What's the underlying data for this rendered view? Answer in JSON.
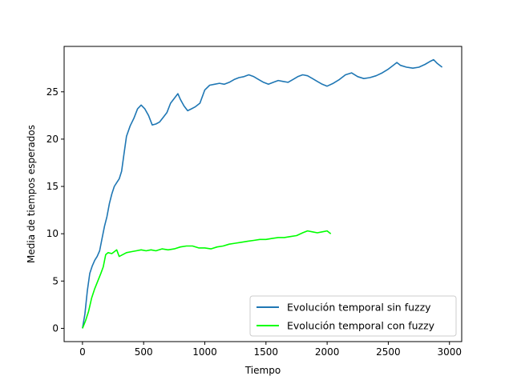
{
  "chart_data": {
    "type": "line",
    "xlabel": "Tiempo",
    "ylabel": "Media de tiempos esperados",
    "xlim": [
      -150,
      3100
    ],
    "ylim": [
      -1.4,
      29.8
    ],
    "xticks": [
      0,
      500,
      1000,
      1500,
      2000,
      2500,
      3000
    ],
    "yticks": [
      0,
      5,
      10,
      15,
      20,
      25
    ],
    "grid": false,
    "legend_position": "bottom-right",
    "series": [
      {
        "name": "Evolución temporal sin fuzzy",
        "color": "#1f77b4",
        "points": [
          [
            0,
            0
          ],
          [
            20,
            1.5
          ],
          [
            40,
            4
          ],
          [
            60,
            5.8
          ],
          [
            80,
            6.6
          ],
          [
            100,
            7.2
          ],
          [
            120,
            7.6
          ],
          [
            140,
            8.2
          ],
          [
            160,
            9.5
          ],
          [
            180,
            10.8
          ],
          [
            200,
            11.8
          ],
          [
            220,
            13.2
          ],
          [
            240,
            14.2
          ],
          [
            260,
            15.0
          ],
          [
            280,
            15.4
          ],
          [
            300,
            15.8
          ],
          [
            320,
            16.6
          ],
          [
            340,
            18.5
          ],
          [
            360,
            20.3
          ],
          [
            390,
            21.4
          ],
          [
            420,
            22.2
          ],
          [
            450,
            23.2
          ],
          [
            480,
            23.6
          ],
          [
            510,
            23.2
          ],
          [
            540,
            22.5
          ],
          [
            570,
            21.5
          ],
          [
            600,
            21.6
          ],
          [
            630,
            21.8
          ],
          [
            660,
            22.3
          ],
          [
            690,
            22.8
          ],
          [
            720,
            23.8
          ],
          [
            750,
            24.3
          ],
          [
            780,
            24.8
          ],
          [
            800,
            24.2
          ],
          [
            830,
            23.5
          ],
          [
            860,
            23.0
          ],
          [
            890,
            23.2
          ],
          [
            920,
            23.4
          ],
          [
            960,
            23.8
          ],
          [
            1000,
            25.2
          ],
          [
            1040,
            25.7
          ],
          [
            1080,
            25.8
          ],
          [
            1120,
            25.9
          ],
          [
            1160,
            25.8
          ],
          [
            1200,
            26.0
          ],
          [
            1240,
            26.3
          ],
          [
            1280,
            26.5
          ],
          [
            1320,
            26.6
          ],
          [
            1360,
            26.8
          ],
          [
            1400,
            26.6
          ],
          [
            1440,
            26.3
          ],
          [
            1480,
            26.0
          ],
          [
            1520,
            25.8
          ],
          [
            1560,
            26.0
          ],
          [
            1600,
            26.2
          ],
          [
            1640,
            26.1
          ],
          [
            1680,
            26.0
          ],
          [
            1720,
            26.3
          ],
          [
            1760,
            26.6
          ],
          [
            1800,
            26.8
          ],
          [
            1840,
            26.7
          ],
          [
            1880,
            26.4
          ],
          [
            1920,
            26.1
          ],
          [
            1960,
            25.8
          ],
          [
            2000,
            25.6
          ],
          [
            2050,
            25.9
          ],
          [
            2100,
            26.3
          ],
          [
            2150,
            26.8
          ],
          [
            2200,
            27.0
          ],
          [
            2250,
            26.6
          ],
          [
            2300,
            26.4
          ],
          [
            2350,
            26.5
          ],
          [
            2400,
            26.7
          ],
          [
            2450,
            27.0
          ],
          [
            2500,
            27.4
          ],
          [
            2540,
            27.8
          ],
          [
            2570,
            28.1
          ],
          [
            2600,
            27.8
          ],
          [
            2650,
            27.6
          ],
          [
            2700,
            27.5
          ],
          [
            2750,
            27.6
          ],
          [
            2800,
            27.9
          ],
          [
            2840,
            28.2
          ],
          [
            2870,
            28.4
          ],
          [
            2900,
            28.0
          ],
          [
            2940,
            27.6
          ]
        ]
      },
      {
        "name": "Evolución temporal con fuzzy",
        "color": "#00ff00",
        "points": [
          [
            0,
            0
          ],
          [
            25,
            0.8
          ],
          [
            50,
            1.8
          ],
          [
            75,
            3.2
          ],
          [
            100,
            4.2
          ],
          [
            125,
            5.0
          ],
          [
            150,
            5.8
          ],
          [
            170,
            6.5
          ],
          [
            190,
            7.8
          ],
          [
            210,
            8.0
          ],
          [
            240,
            7.9
          ],
          [
            260,
            8.1
          ],
          [
            280,
            8.3
          ],
          [
            300,
            7.6
          ],
          [
            330,
            7.8
          ],
          [
            360,
            8.0
          ],
          [
            400,
            8.1
          ],
          [
            440,
            8.2
          ],
          [
            480,
            8.3
          ],
          [
            520,
            8.2
          ],
          [
            560,
            8.3
          ],
          [
            600,
            8.2
          ],
          [
            650,
            8.4
          ],
          [
            700,
            8.3
          ],
          [
            750,
            8.4
          ],
          [
            800,
            8.6
          ],
          [
            850,
            8.7
          ],
          [
            900,
            8.7
          ],
          [
            950,
            8.5
          ],
          [
            1000,
            8.5
          ],
          [
            1050,
            8.4
          ],
          [
            1100,
            8.6
          ],
          [
            1150,
            8.7
          ],
          [
            1200,
            8.9
          ],
          [
            1250,
            9.0
          ],
          [
            1300,
            9.1
          ],
          [
            1350,
            9.2
          ],
          [
            1400,
            9.3
          ],
          [
            1450,
            9.4
          ],
          [
            1500,
            9.4
          ],
          [
            1550,
            9.5
          ],
          [
            1600,
            9.6
          ],
          [
            1650,
            9.6
          ],
          [
            1700,
            9.7
          ],
          [
            1750,
            9.8
          ],
          [
            1800,
            10.1
          ],
          [
            1840,
            10.3
          ],
          [
            1880,
            10.2
          ],
          [
            1920,
            10.1
          ],
          [
            1960,
            10.2
          ],
          [
            2000,
            10.3
          ],
          [
            2030,
            10.0
          ]
        ]
      }
    ]
  }
}
